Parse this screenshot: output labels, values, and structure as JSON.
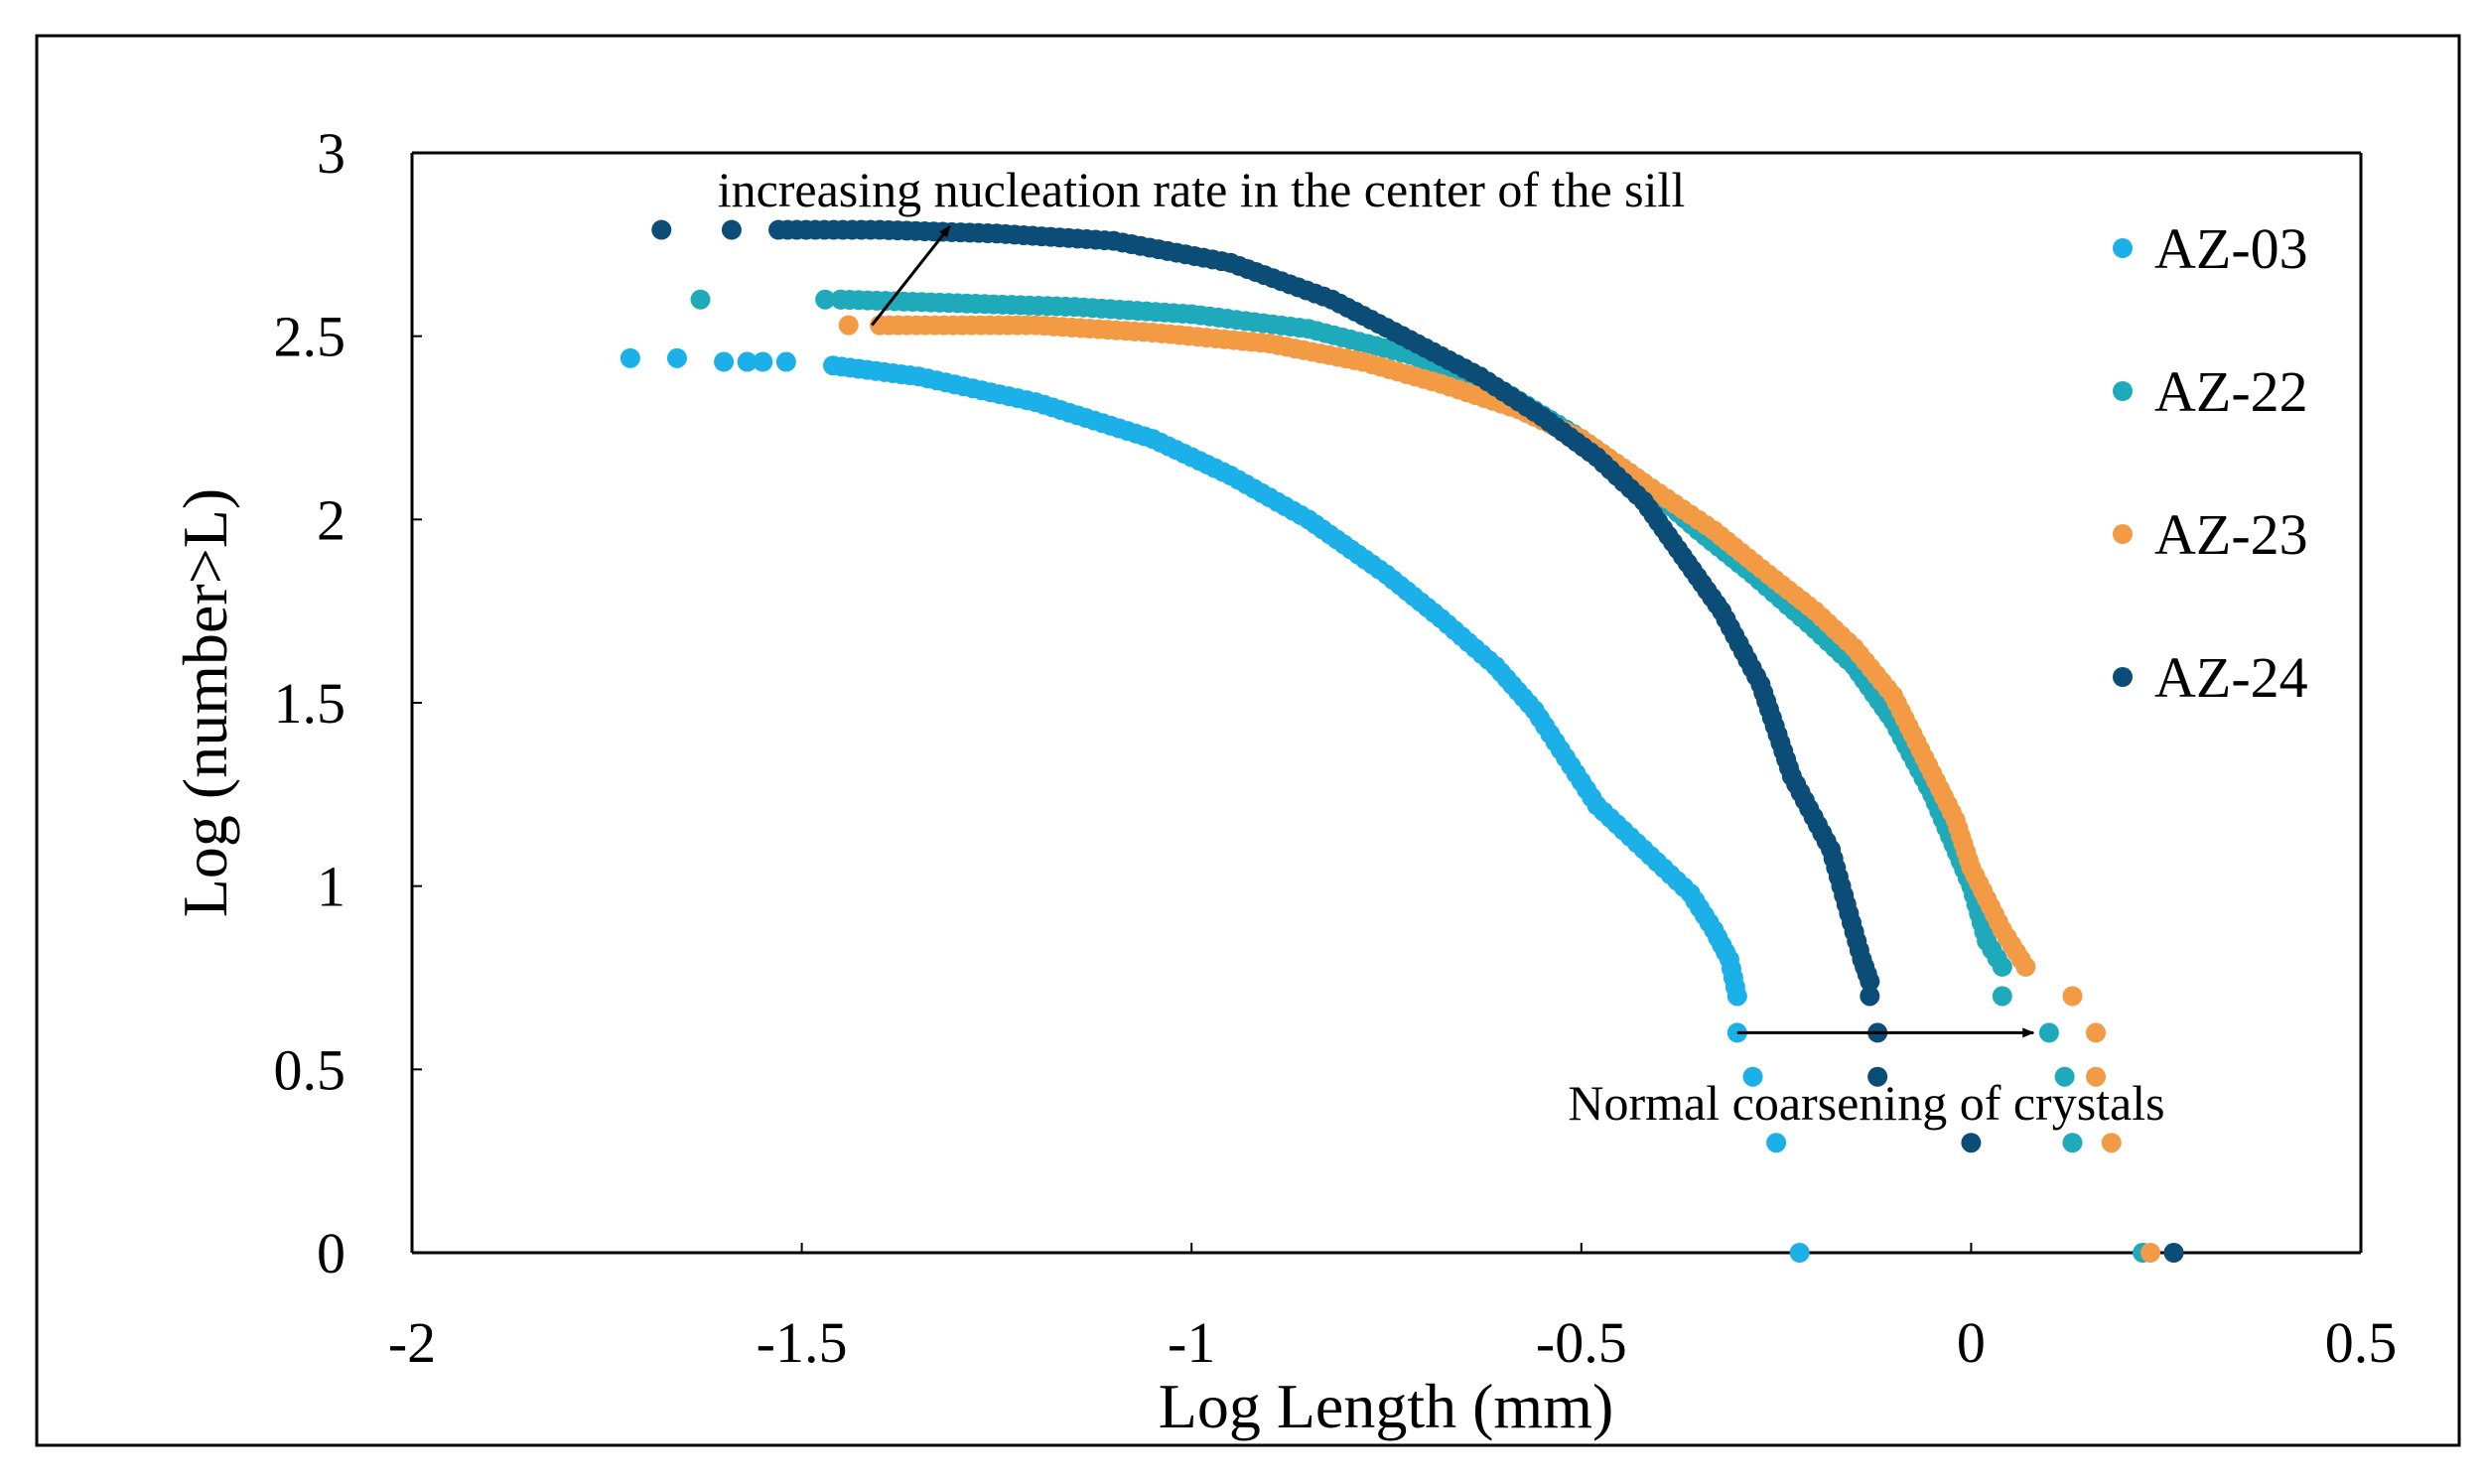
{
  "chart_data": {
    "type": "scatter",
    "title": "",
    "xlabel": "Log Length (mm)",
    "ylabel": "Log (number>L)",
    "xlim": [
      -2,
      0.5
    ],
    "ylim": [
      0,
      3
    ],
    "xticks": [
      -2,
      -1.5,
      -1,
      -0.5,
      0,
      0.5
    ],
    "xtick_labels": [
      "-2",
      "-1.5",
      "-1",
      "-0.5",
      "0",
      "0.5"
    ],
    "yticks": [
      0,
      0.5,
      1,
      1.5,
      2,
      2.5,
      3
    ],
    "ytick_labels": [
      "0",
      "0.5",
      "1",
      "1.5",
      "2",
      "2.5",
      "3"
    ],
    "grid": false,
    "legend_position": "right",
    "series": [
      {
        "name": "AZ-03",
        "color": "#1CB0E8",
        "curve": [
          [
            -1.46,
            2.42
          ],
          [
            -1.35,
            2.39
          ],
          [
            -1.2,
            2.32
          ],
          [
            -1.05,
            2.22
          ],
          [
            -0.95,
            2.12
          ],
          [
            -0.85,
            2.0
          ],
          [
            -0.75,
            1.85
          ],
          [
            -0.68,
            1.73
          ],
          [
            -0.61,
            1.6
          ],
          [
            -0.56,
            1.48
          ],
          [
            -0.52,
            1.35
          ],
          [
            -0.48,
            1.22
          ],
          [
            -0.42,
            1.1
          ],
          [
            -0.36,
            0.98
          ],
          [
            -0.33,
            0.88
          ],
          [
            -0.31,
            0.8
          ],
          [
            -0.3,
            0.7
          ]
        ],
        "points": [
          [
            -1.72,
            2.44
          ],
          [
            -1.66,
            2.44
          ],
          [
            -1.6,
            2.43
          ],
          [
            -1.57,
            2.43
          ],
          [
            -1.55,
            2.43
          ],
          [
            -1.52,
            2.43
          ],
          [
            -0.3,
            0.6
          ],
          [
            -0.28,
            0.48
          ],
          [
            -0.25,
            0.3
          ],
          [
            -0.22,
            0.0
          ]
        ]
      },
      {
        "name": "AZ-22",
        "color": "#1EAABB",
        "curve": [
          [
            -1.45,
            2.6
          ],
          [
            -1.3,
            2.59
          ],
          [
            -1.15,
            2.58
          ],
          [
            -1.0,
            2.56
          ],
          [
            -0.85,
            2.52
          ],
          [
            -0.72,
            2.45
          ],
          [
            -0.6,
            2.35
          ],
          [
            -0.5,
            2.22
          ],
          [
            -0.42,
            2.1
          ],
          [
            -0.35,
            1.97
          ],
          [
            -0.28,
            1.85
          ],
          [
            -0.2,
            1.7
          ],
          [
            -0.15,
            1.6
          ],
          [
            -0.1,
            1.45
          ],
          [
            -0.05,
            1.25
          ],
          [
            0.0,
            1.0
          ],
          [
            0.02,
            0.85
          ],
          [
            0.04,
            0.78
          ]
        ],
        "points": [
          [
            -1.63,
            2.6
          ],
          [
            -1.47,
            2.6
          ],
          [
            -1.45,
            2.6
          ],
          [
            0.04,
            0.7
          ],
          [
            0.1,
            0.6
          ],
          [
            0.12,
            0.48
          ],
          [
            0.13,
            0.3
          ],
          [
            0.22,
            0.0
          ]
        ]
      },
      {
        "name": "AZ-23",
        "color": "#F39A45",
        "curve": [
          [
            -1.4,
            2.53
          ],
          [
            -1.2,
            2.53
          ],
          [
            -1.05,
            2.51
          ],
          [
            -0.9,
            2.48
          ],
          [
            -0.78,
            2.43
          ],
          [
            -0.68,
            2.37
          ],
          [
            -0.58,
            2.3
          ],
          [
            -0.5,
            2.22
          ],
          [
            -0.42,
            2.1
          ],
          [
            -0.33,
            1.97
          ],
          [
            -0.26,
            1.85
          ],
          [
            -0.2,
            1.75
          ],
          [
            -0.15,
            1.65
          ],
          [
            -0.1,
            1.52
          ],
          [
            -0.06,
            1.35
          ],
          [
            -0.02,
            1.18
          ],
          [
            0.0,
            1.05
          ],
          [
            0.04,
            0.88
          ],
          [
            0.07,
            0.78
          ]
        ],
        "points": [
          [
            -1.44,
            2.53
          ],
          [
            -1.4,
            2.53
          ],
          [
            0.13,
            0.7
          ],
          [
            0.16,
            0.6
          ],
          [
            0.16,
            0.48
          ],
          [
            0.18,
            0.3
          ],
          [
            0.23,
            0.0
          ]
        ]
      },
      {
        "name": "AZ-24",
        "color": "#0C4D78",
        "curve": [
          [
            -1.53,
            2.79
          ],
          [
            -1.4,
            2.79
          ],
          [
            -1.25,
            2.78
          ],
          [
            -1.1,
            2.76
          ],
          [
            -0.95,
            2.7
          ],
          [
            -0.82,
            2.6
          ],
          [
            -0.72,
            2.49
          ],
          [
            -0.63,
            2.39
          ],
          [
            -0.55,
            2.28
          ],
          [
            -0.48,
            2.17
          ],
          [
            -0.42,
            2.05
          ],
          [
            -0.37,
            1.9
          ],
          [
            -0.32,
            1.75
          ],
          [
            -0.27,
            1.55
          ],
          [
            -0.23,
            1.3
          ],
          [
            -0.18,
            1.1
          ],
          [
            -0.16,
            0.95
          ],
          [
            -0.14,
            0.8
          ],
          [
            -0.13,
            0.74
          ]
        ],
        "points": [
          [
            -1.68,
            2.79
          ],
          [
            -1.59,
            2.79
          ],
          [
            -0.13,
            0.7
          ],
          [
            -0.12,
            0.6
          ],
          [
            -0.12,
            0.48
          ],
          [
            0.0,
            0.3
          ],
          [
            0.26,
            0.0
          ]
        ]
      }
    ],
    "annotations": [
      {
        "text": "increasing nucleation rate in the center of the sill",
        "arrow_from": [
          -1.41,
          2.53
        ],
        "arrow_to": [
          -1.31,
          2.8
        ]
      },
      {
        "text": "Normal coarsening of crystals",
        "arrow_from": [
          -0.3,
          0.6
        ],
        "arrow_to": [
          0.08,
          0.6
        ]
      }
    ]
  }
}
